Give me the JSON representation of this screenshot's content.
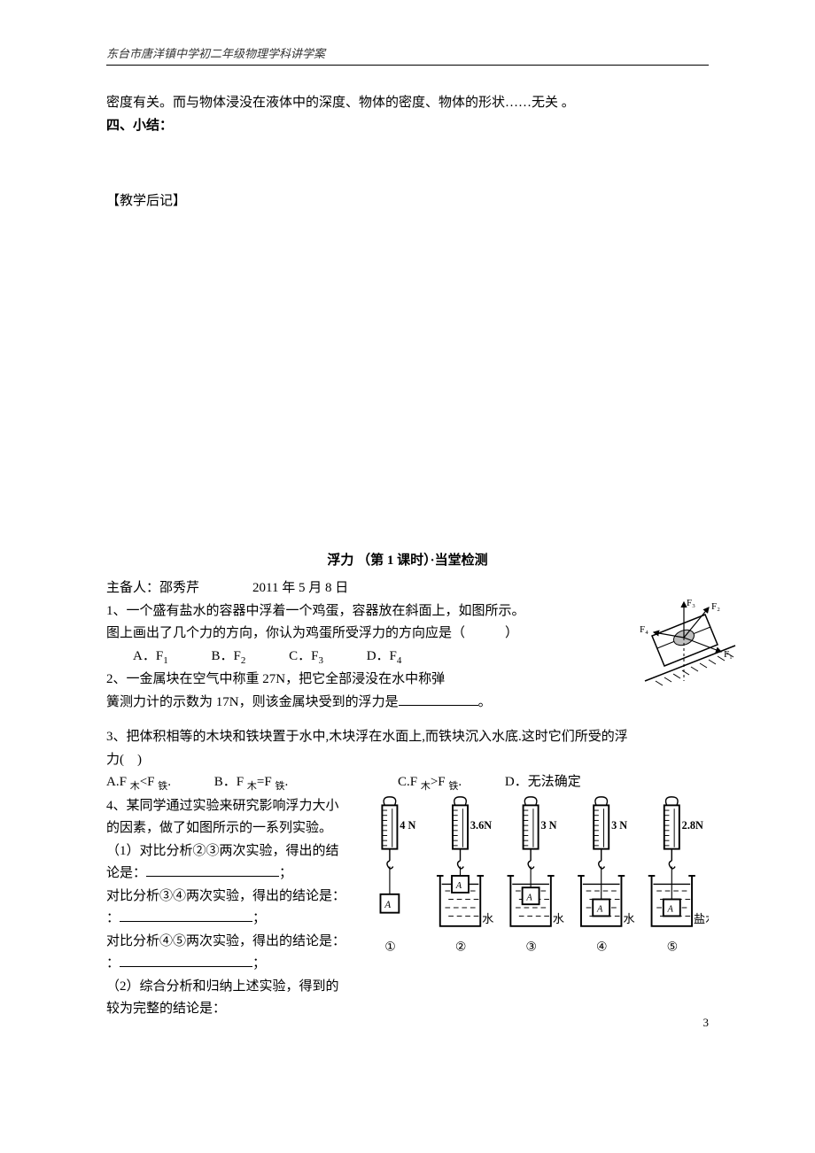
{
  "header": {
    "school": "东台市唐洋镇中学初二年级物理学科讲学案"
  },
  "intro": {
    "line1": "密度有关。而与物体浸没在液体中的深度、物体的密度、物体的形状……无关 。",
    "section4": "四、小结：",
    "postnote": "【教学后记】"
  },
  "test": {
    "title": "浮力 （第 1 课时）·当堂检测",
    "author_line": "主备人：邵秀芹　　　　2011 年 5 月 8 日"
  },
  "q1": {
    "text_a": "1、一个盛有盐水的容器中浮着一个鸡蛋，容器放在斜面上，如图所示。",
    "text_b": "图上画出了几个力的方向，你认为鸡蛋所受浮力的方向应是（　　　）",
    "opt_a": "A．F",
    "opt_b": "B．F",
    "opt_c": "C．F",
    "opt_d": "D．F",
    "sub1": "1",
    "sub2": "2",
    "sub3": "3",
    "sub4": "4",
    "fig": {
      "labels": {
        "f1": "F₁",
        "f2": "F₂",
        "f3": "F₃",
        "f4": "F₄"
      }
    }
  },
  "q2": {
    "text_a": "2、一金属块在空气中称重 27N，把它全部浸没在水中称弹",
    "text_b": "簧测力计的示数为 17N，则该金属块受到的浮力是",
    "text_c": "。"
  },
  "q3": {
    "text_a": "3、把体积相等的木块和铁块置于水中,木块浮在水面上,而铁块沉入水底.这时它们所受的浮",
    "text_b": "力(　)",
    "opt_a_pre": "A.F ",
    "opt_a_sub": "木",
    "opt_a_mid": "<F ",
    "opt_a_sub2": "铁",
    "opt_a_end": ".",
    "opt_b_pre": "B．F ",
    "opt_b_sub": "木",
    "opt_b_mid": "=F ",
    "opt_b_sub2": "铁",
    "opt_b_end": ".",
    "opt_c_pre": "C.F ",
    "opt_c_sub": "木",
    "opt_c_mid": ">F ",
    "opt_c_sub2": "铁",
    "opt_c_end": ".",
    "opt_d": "D．无法确定"
  },
  "q4": {
    "text_a": "4、某同学通过实验来研究影响浮力大小的因素，做了如图所示的一系列实验。",
    "text_b": "（1）对比分析②③两次实验，得出的结论是：",
    "text_c": "；",
    "text_d": "对比分析③④两次实验，得出的结论是：",
    "text_e": "；",
    "text_f": "对比分析④⑤两次实验，得出的结论是：",
    "text_g": "；",
    "text_h": "（2）综合分析和归纳上述实验，得到的较为完整的结论是：",
    "readings": [
      "4 N",
      "3.6N",
      "3 N",
      "3 N",
      "2.8N"
    ],
    "liquids": [
      "",
      "水",
      "水",
      "水",
      "盐水"
    ],
    "circles": [
      "①",
      "②",
      "③",
      "④",
      "⑤"
    ]
  },
  "page_number": "3"
}
